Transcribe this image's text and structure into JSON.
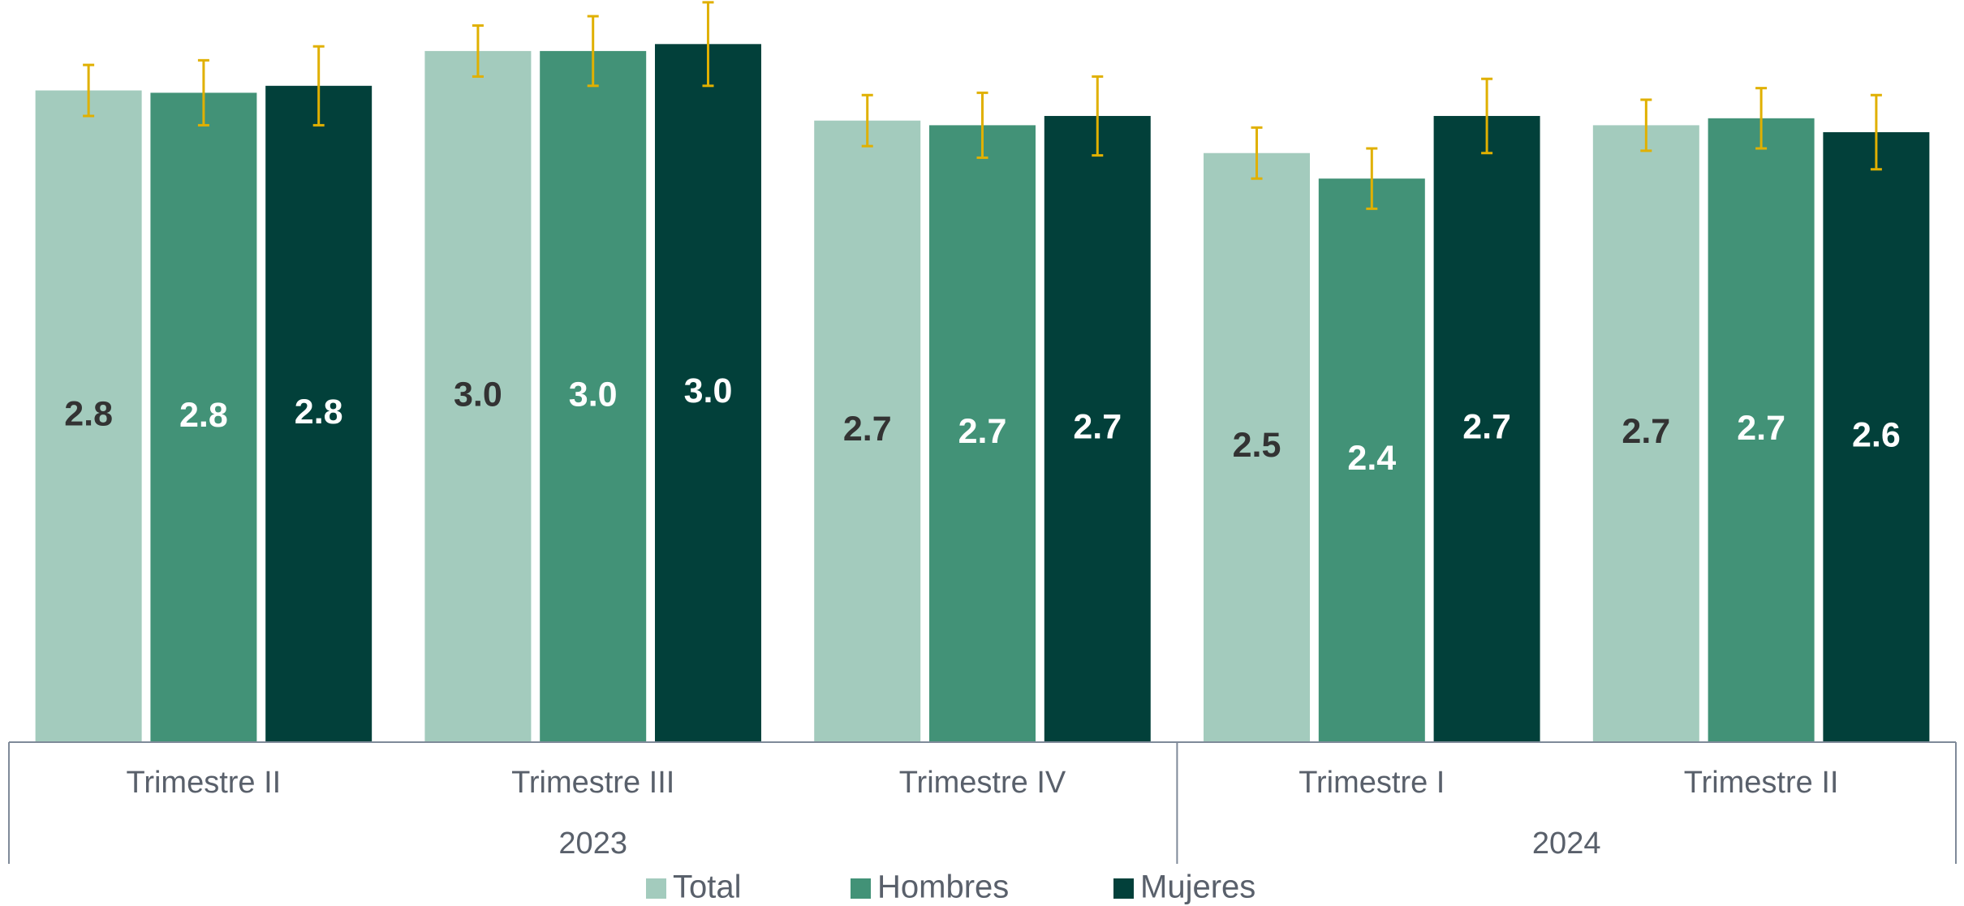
{
  "chart_data": {
    "type": "bar",
    "categories": [
      "Trimestre II",
      "Trimestre III",
      "Trimestre IV",
      "Trimestre I",
      "Trimestre II"
    ],
    "x_groups": [
      {
        "label": "2023",
        "count": 3
      },
      {
        "label": "2024",
        "count": 2
      }
    ],
    "series": [
      {
        "name": "Total",
        "color": "#a3cbbd",
        "label_color": "#333333",
        "values": [
          2.81,
          2.98,
          2.68,
          2.54,
          2.66
        ],
        "value_labels": [
          "2.8",
          "3.0",
          "2.7",
          "2.5",
          "2.7"
        ],
        "errors": [
          0.11,
          0.11,
          0.11,
          0.11,
          0.11
        ]
      },
      {
        "name": "Hombres",
        "color": "#429277",
        "label_color": "#ffffff",
        "values": [
          2.8,
          2.98,
          2.66,
          2.43,
          2.69
        ],
        "value_labels": [
          "2.8",
          "3.0",
          "2.7",
          "2.4",
          "2.7"
        ],
        "errors": [
          0.14,
          0.15,
          0.14,
          0.13,
          0.13
        ]
      },
      {
        "name": "Mujeres",
        "color": "#02403a",
        "label_color": "#ffffff",
        "values": [
          2.83,
          3.01,
          2.7,
          2.7,
          2.63
        ],
        "value_labels": [
          "2.8",
          "3.0",
          "2.7",
          "2.7",
          "2.6"
        ],
        "errors": [
          0.17,
          0.18,
          0.17,
          0.16,
          0.16
        ]
      }
    ],
    "error_color": "#e0b000",
    "ylim": [
      0,
      3.2
    ],
    "grid": false
  }
}
